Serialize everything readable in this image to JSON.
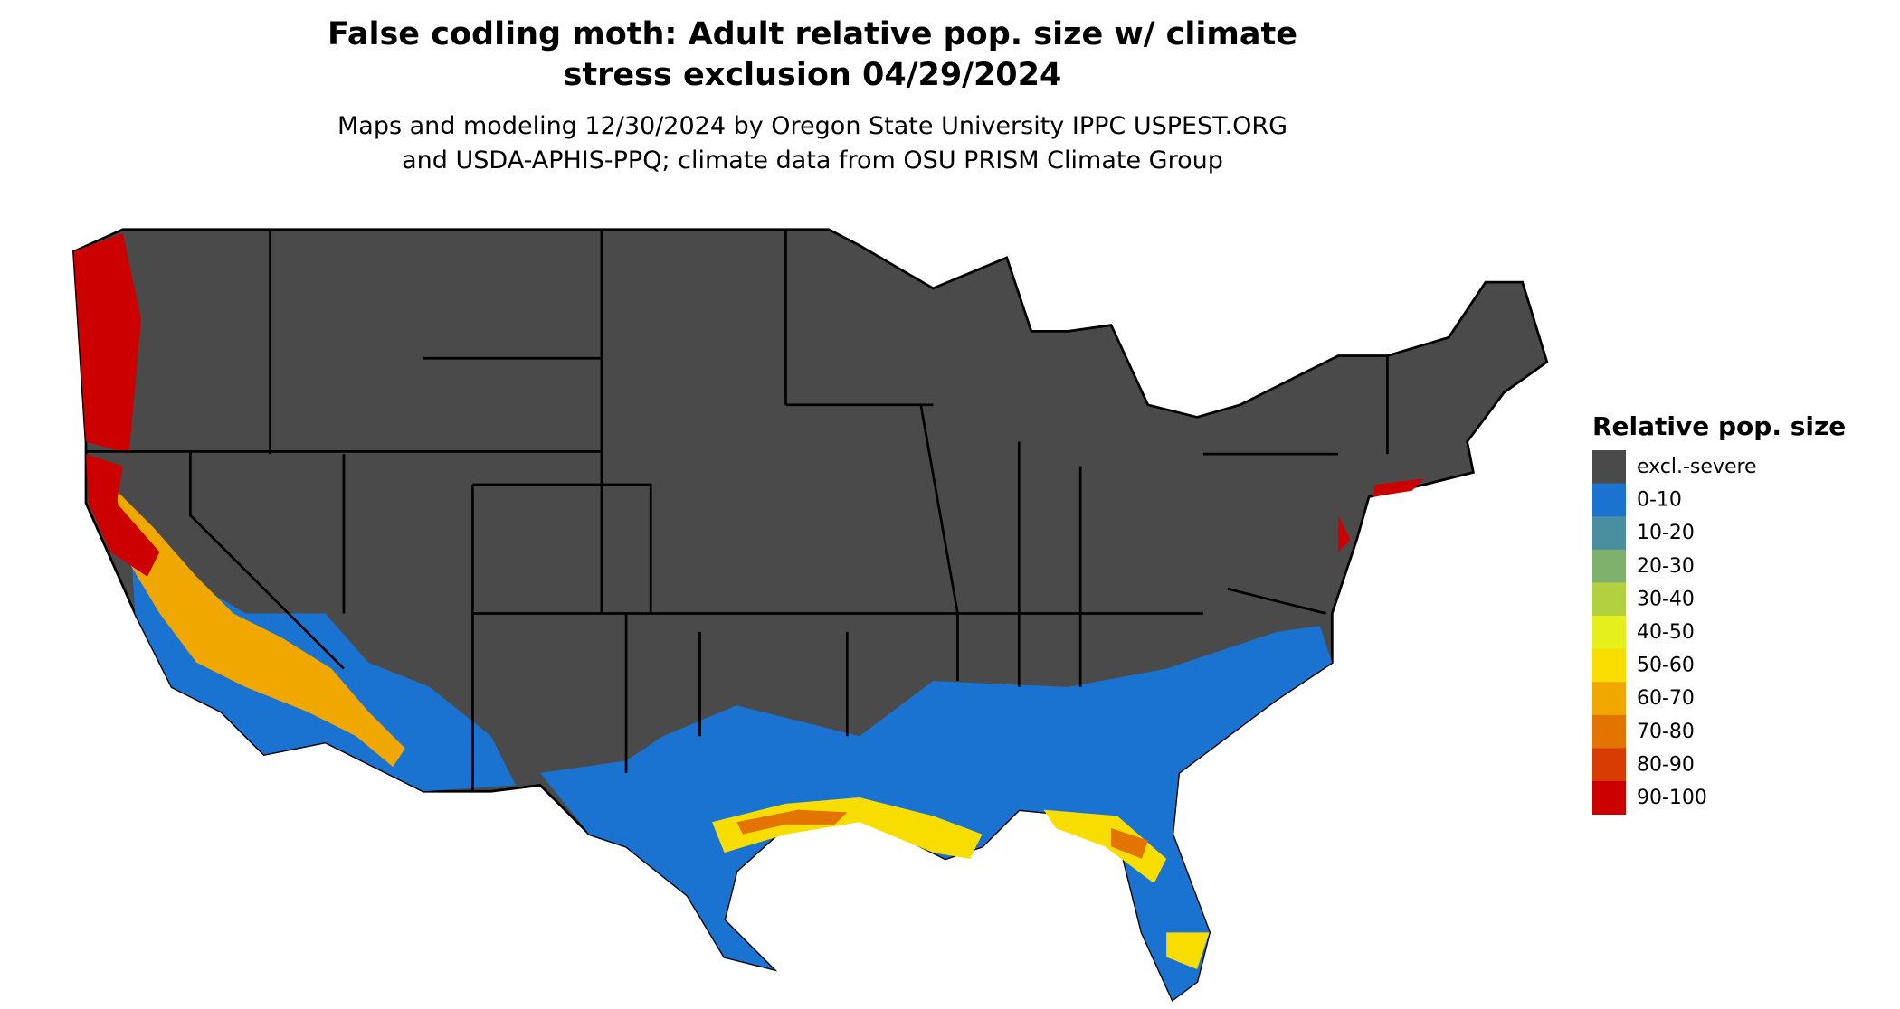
{
  "title": "False codling moth: Adult relative pop. size w/ climate stress exclusion 04/29/2024",
  "subtitle": "Maps and modeling 12/30/2024 by Oregon State University IPPC USPEST.ORG and USDA-APHIS-PPQ; climate data from OSU PRISM Climate Group",
  "legend": {
    "title": "Relative pop. size",
    "items": [
      {
        "label": "excl.-severe",
        "color": "#4a4a4a"
      },
      {
        "label": "0-10",
        "color": "#1a73d0"
      },
      {
        "label": "10-20",
        "color": "#4a8fa0"
      },
      {
        "label": "20-30",
        "color": "#7fb06e"
      },
      {
        "label": "30-40",
        "color": "#b2d13e"
      },
      {
        "label": "40-50",
        "color": "#e4ef1c"
      },
      {
        "label": "50-60",
        "color": "#f8de00"
      },
      {
        "label": "60-70",
        "color": "#f0a800"
      },
      {
        "label": "70-80",
        "color": "#e47400"
      },
      {
        "label": "80-90",
        "color": "#d83c00"
      },
      {
        "label": "90-100",
        "color": "#cc0000"
      }
    ]
  }
}
